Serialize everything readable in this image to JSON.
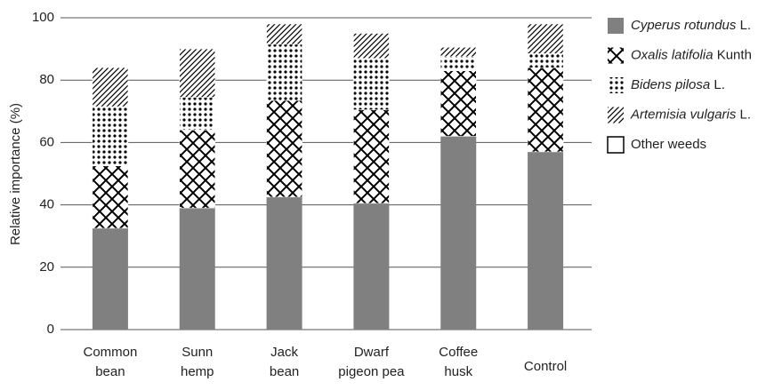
{
  "chart_data": {
    "type": "stacked_bar",
    "y_label": "Relative importance (%)",
    "categories": [
      "Common bean",
      "Sunn hemp",
      "Jack bean",
      "Dwarf pigeon pea",
      "Coffee husk",
      "Control"
    ],
    "series": [
      {
        "name": "Cyperus rotundus L.",
        "color": "#808080",
        "pattern": "solid",
        "italic_words": 2,
        "values": [
          32.5,
          39,
          42.5,
          40.5,
          62,
          57
        ]
      },
      {
        "name": "Oxalis latifolia Kunth",
        "color": "#000000",
        "pattern": "crosshatch",
        "italic_words": 2,
        "values": [
          20,
          25,
          31,
          30,
          21,
          27
        ]
      },
      {
        "name": "Bidens pilosa L.",
        "color": "#000000",
        "pattern": "dots",
        "italic_words": 2,
        "values": [
          19,
          10.5,
          18,
          16.5,
          4.5,
          4.5
        ]
      },
      {
        "name": "Artemisia vulgaris L.",
        "color": "#000000",
        "pattern": "diagonal",
        "italic_words": 2,
        "values": [
          12.5,
          15.5,
          6.5,
          8,
          3,
          9.5
        ]
      },
      {
        "name": "Other weeds",
        "color": "#ffffff",
        "pattern": "solid",
        "italic_words": 0,
        "values": [
          0,
          0,
          0,
          0,
          0,
          0
        ]
      }
    ],
    "ylim": [
      0,
      100
    ],
    "yticks": [
      0,
      20,
      40,
      60,
      80,
      100
    ],
    "grid": true,
    "legend": "right"
  }
}
